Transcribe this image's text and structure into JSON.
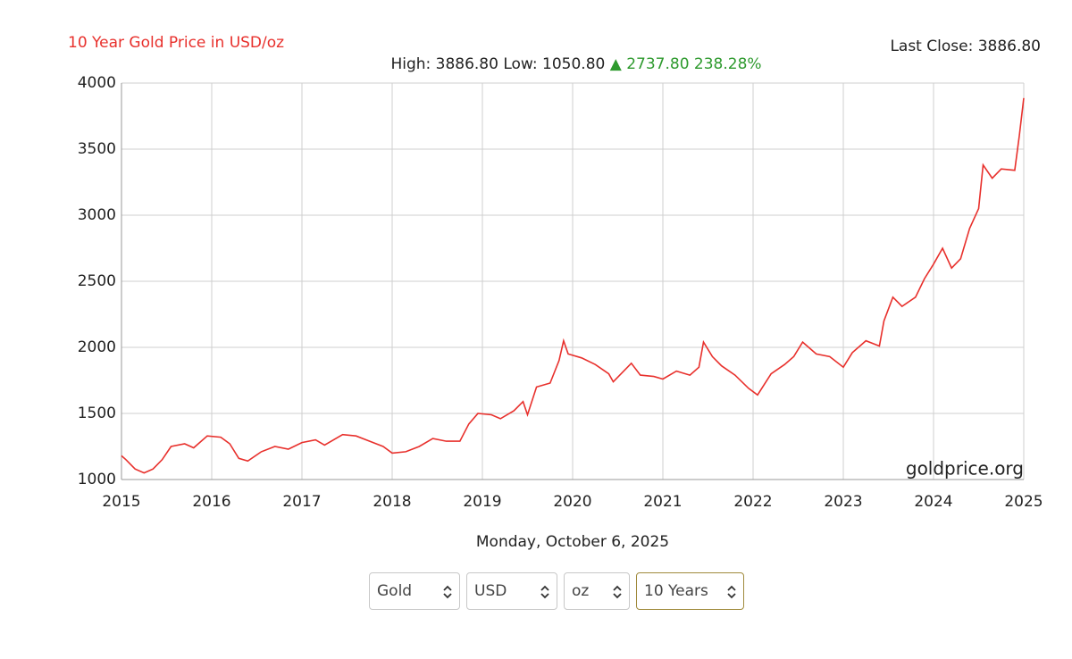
{
  "chart_data": {
    "type": "line",
    "title": "10 Year Gold Price in USD/oz",
    "last_close": "Last Close: 3886.80",
    "subtitle": "High: 3886.80 Low: 1050.80",
    "change": "▲ 2737.80 238.28%",
    "watermark": "goldprice.org",
    "xlim": [
      2015,
      2025
    ],
    "xticks": [
      2015,
      2016,
      2017,
      2018,
      2019,
      2020,
      2021,
      2022,
      2023,
      2024,
      2025
    ],
    "ylim": [
      1000,
      4000
    ],
    "yticks": [
      1000,
      1500,
      2000,
      2500,
      3000,
      3500,
      4000
    ],
    "grid": true,
    "series": [
      {
        "name": "Gold",
        "color": "#e8302c",
        "x": [
          2015.0,
          2015.05,
          2015.15,
          2015.25,
          2015.35,
          2015.45,
          2015.55,
          2015.7,
          2015.8,
          2015.95,
          2016.1,
          2016.2,
          2016.3,
          2016.4,
          2016.55,
          2016.7,
          2016.85,
          2017.0,
          2017.15,
          2017.25,
          2017.45,
          2017.6,
          2017.75,
          2017.9,
          2018.0,
          2018.15,
          2018.3,
          2018.45,
          2018.6,
          2018.75,
          2018.85,
          2018.95,
          2019.1,
          2019.2,
          2019.35,
          2019.45,
          2019.5,
          2019.6,
          2019.75,
          2019.85,
          2019.9,
          2019.95,
          2020.1,
          2020.25,
          2020.4,
          2020.45,
          2020.65,
          2020.75,
          2020.9,
          2021.0,
          2021.15,
          2021.3,
          2021.4,
          2021.45,
          2021.55,
          2021.65,
          2021.8,
          2021.95,
          2022.05,
          2022.2,
          2022.35,
          2022.45,
          2022.55,
          2022.7,
          2022.85,
          2023.0,
          2023.1,
          2023.25,
          2023.4,
          2023.45,
          2023.55,
          2023.65,
          2023.8,
          2023.9,
          2024.0,
          2024.1,
          2024.2,
          2024.3,
          2024.4,
          2024.5,
          2024.55,
          2024.65,
          2024.75,
          2024.9,
          2024.95,
          2025.0
        ],
        "values": [
          1180,
          1150,
          1080,
          1050,
          1080,
          1150,
          1250,
          1270,
          1240,
          1330,
          1320,
          1270,
          1160,
          1140,
          1210,
          1250,
          1230,
          1280,
          1300,
          1260,
          1340,
          1330,
          1290,
          1250,
          1200,
          1210,
          1250,
          1310,
          1290,
          1290,
          1420,
          1500,
          1490,
          1460,
          1520,
          1590,
          1490,
          1700,
          1730,
          1900,
          2050,
          1950,
          1920,
          1870,
          1800,
          1740,
          1880,
          1790,
          1780,
          1760,
          1820,
          1790,
          1850,
          2040,
          1930,
          1860,
          1790,
          1690,
          1640,
          1800,
          1870,
          1930,
          2040,
          1950,
          1930,
          1850,
          1960,
          2050,
          2010,
          2200,
          2380,
          2310,
          2380,
          2520,
          2630,
          2750,
          2600,
          2670,
          2900,
          3050,
          3380,
          3280,
          3350,
          3340,
          3600,
          3886.8
        ]
      }
    ]
  },
  "date": "Monday, October 6, 2025",
  "controls": [
    "Gold",
    "USD",
    "oz",
    "10 Years"
  ]
}
